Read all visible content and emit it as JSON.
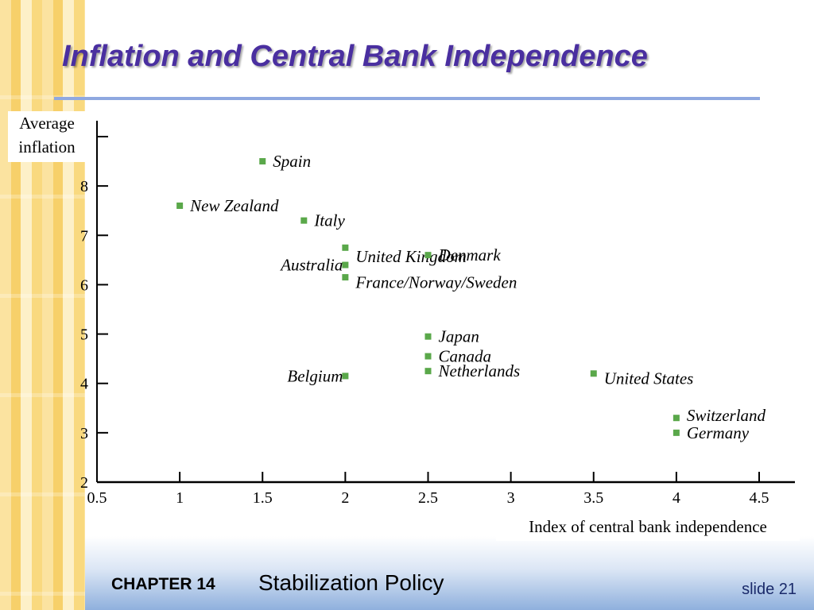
{
  "slide": {
    "title": "Inflation and Central Bank Independence",
    "chapter_label": "CHAPTER 14",
    "chapter_title": "Stabilization Policy",
    "slide_number": "slide 21"
  },
  "colors": {
    "title": "#4a2fa0",
    "rule": "#8fa8e0",
    "marker": "#5aa84a",
    "axis": "#000000"
  },
  "chart_data": {
    "type": "scatter",
    "ylabel": "Average inflation",
    "ylabel_lines": [
      "Average",
      "inflation"
    ],
    "xlabel": "Index of central bank independence",
    "xlim": [
      0.5,
      4.7
    ],
    "ylim": [
      2,
      9
    ],
    "xticks": [
      0.5,
      1,
      1.5,
      2,
      2.5,
      3,
      3.5,
      4,
      4.5
    ],
    "xtick_labels": [
      "0.5",
      "1",
      "1.5",
      "2",
      "2.5",
      "3",
      "3.5",
      "4",
      "4.5"
    ],
    "yticks": [
      2,
      3,
      4,
      5,
      6,
      7,
      8,
      9
    ],
    "ytick_labels": [
      "2",
      "3",
      "4",
      "5",
      "6",
      "7",
      "8",
      ""
    ],
    "grid": false,
    "points": [
      {
        "label": "Spain",
        "x": 1.5,
        "y": 8.5,
        "side": "right"
      },
      {
        "label": "New Zealand",
        "x": 1.0,
        "y": 7.6,
        "side": "right"
      },
      {
        "label": "Italy",
        "x": 1.75,
        "y": 7.3,
        "side": "right"
      },
      {
        "label": "United Kingdom",
        "x": 2.0,
        "y": 6.75,
        "side": "right",
        "dy": -0.18
      },
      {
        "label": "Australia",
        "x": 2.0,
        "y": 6.4,
        "side": "left"
      },
      {
        "label": "France/Norway/Sweden",
        "x": 2.0,
        "y": 6.15,
        "side": "right",
        "dy": -0.1
      },
      {
        "label": "Denmark",
        "x": 2.5,
        "y": 6.6,
        "side": "right"
      },
      {
        "label": "Japan",
        "x": 2.5,
        "y": 4.95,
        "side": "right"
      },
      {
        "label": "Canada",
        "x": 2.5,
        "y": 4.55,
        "side": "right"
      },
      {
        "label": "Netherlands",
        "x": 2.5,
        "y": 4.25,
        "side": "right"
      },
      {
        "label": "Belgium",
        "x": 2.0,
        "y": 4.15,
        "side": "left"
      },
      {
        "label": "United States",
        "x": 3.5,
        "y": 4.2,
        "side": "right",
        "dy": -0.1
      },
      {
        "label": "Switzerland",
        "x": 4.0,
        "y": 3.3,
        "side": "right",
        "dy": 0.05
      },
      {
        "label": "Germany",
        "x": 4.0,
        "y": 3.0,
        "side": "right"
      }
    ]
  }
}
